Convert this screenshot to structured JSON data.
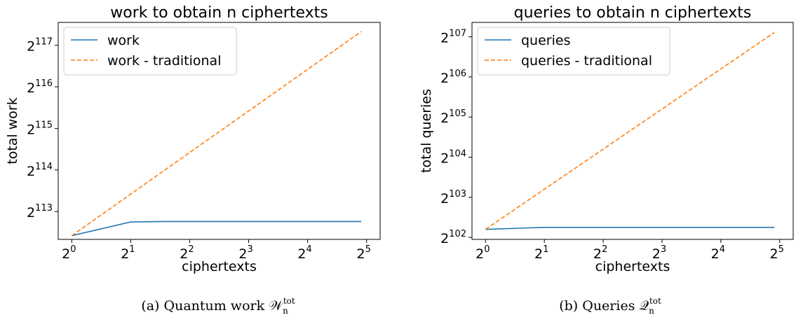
{
  "chart_data": [
    {
      "type": "line",
      "title": "work to obtain n ciphertexts",
      "xlabel": "ciphertexts",
      "ylabel": "total work",
      "x_scale": "log2",
      "y_scale": "log2",
      "xlim_exp": [
        -0.23,
        5.23
      ],
      "ylim_exp": [
        112.33,
        117.55
      ],
      "xticks": [
        {
          "base": "2",
          "exp": "0",
          "value": 0
        },
        {
          "base": "2",
          "exp": "1",
          "value": 1
        },
        {
          "base": "2",
          "exp": "2",
          "value": 2
        },
        {
          "base": "2",
          "exp": "3",
          "value": 3
        },
        {
          "base": "2",
          "exp": "4",
          "value": 4
        },
        {
          "base": "2",
          "exp": "5",
          "value": 5
        }
      ],
      "yticks": [
        {
          "base": "2",
          "exp": "113",
          "value": 113
        },
        {
          "base": "2",
          "exp": "114",
          "value": 114
        },
        {
          "base": "2",
          "exp": "115",
          "value": 115
        },
        {
          "base": "2",
          "exp": "116",
          "value": 116
        },
        {
          "base": "2",
          "exp": "117",
          "value": 117
        }
      ],
      "legend_loc": "upper-left",
      "grid": false,
      "series": [
        {
          "name": "work",
          "color": "#1f77b4",
          "dash": "solid",
          "x_exp": [
            0,
            1,
            1.58,
            2,
            3,
            4,
            4.91
          ],
          "y_exp": [
            112.42,
            112.75,
            112.76,
            112.76,
            112.76,
            112.76,
            112.76
          ]
        },
        {
          "name": "work - traditional",
          "color": "#ff7f0e",
          "dash": "dashed",
          "x_exp": [
            0,
            4.91
          ],
          "y_exp": [
            112.42,
            117.33
          ]
        }
      ],
      "caption": {
        "prefix": "(a) Quantum work ",
        "symbol": "𝒲",
        "sub": "n",
        "sup": "tot"
      }
    },
    {
      "type": "line",
      "title": "queries to obtain n ciphertexts",
      "xlabel": "ciphertexts",
      "ylabel": "total queries",
      "x_scale": "log2",
      "y_scale": "log2",
      "xlim_exp": [
        -0.23,
        5.23
      ],
      "ylim_exp": [
        101.95,
        107.36
      ],
      "xticks": [
        {
          "base": "2",
          "exp": "0",
          "value": 0
        },
        {
          "base": "2",
          "exp": "1",
          "value": 1
        },
        {
          "base": "2",
          "exp": "2",
          "value": 2
        },
        {
          "base": "2",
          "exp": "3",
          "value": 3
        },
        {
          "base": "2",
          "exp": "4",
          "value": 4
        },
        {
          "base": "2",
          "exp": "5",
          "value": 5
        }
      ],
      "yticks": [
        {
          "base": "2",
          "exp": "102",
          "value": 102
        },
        {
          "base": "2",
          "exp": "103",
          "value": 103
        },
        {
          "base": "2",
          "exp": "104",
          "value": 104
        },
        {
          "base": "2",
          "exp": "105",
          "value": 105
        },
        {
          "base": "2",
          "exp": "106",
          "value": 106
        },
        {
          "base": "2",
          "exp": "107",
          "value": 107
        }
      ],
      "legend_loc": "upper-left",
      "grid": false,
      "series": [
        {
          "name": "queries",
          "color": "#1f77b4",
          "dash": "solid",
          "x_exp": [
            0,
            1,
            1.58,
            2,
            3,
            4,
            4.91
          ],
          "y_exp": [
            102.2,
            102.25,
            102.25,
            102.25,
            102.25,
            102.25,
            102.25
          ]
        },
        {
          "name": "queries - traditional",
          "color": "#ff7f0e",
          "dash": "dashed",
          "x_exp": [
            0,
            4.91
          ],
          "y_exp": [
            102.2,
            107.11
          ]
        }
      ],
      "caption": {
        "prefix": "(b) Queries ",
        "symbol": "𝒬",
        "sub": "n",
        "sup": "tot"
      }
    }
  ]
}
